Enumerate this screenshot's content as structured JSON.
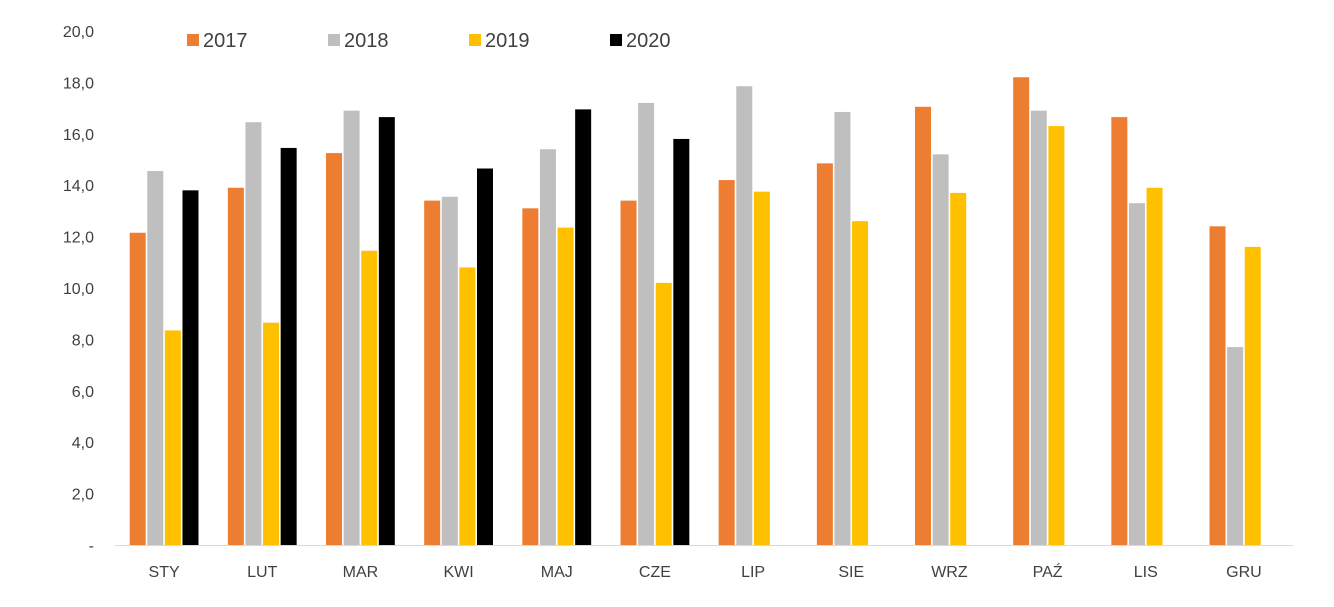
{
  "chart_data": {
    "type": "bar",
    "title": "",
    "xlabel": "",
    "ylabel": "",
    "ylim": [
      0,
      20
    ],
    "yticks": [
      0,
      2,
      4,
      6,
      8,
      10,
      12,
      14,
      16,
      18,
      20
    ],
    "ytick_labels": [
      "-",
      "2,0",
      "4,0",
      "6,0",
      "8,0",
      "10,0",
      "12,0",
      "14,0",
      "16,0",
      "18,0",
      "20,0"
    ],
    "categories": [
      "STY",
      "LUT",
      "MAR",
      "KWI",
      "MAJ",
      "CZE",
      "LIP",
      "SIE",
      "WRZ",
      "PAŹ",
      "LIS",
      "GRU"
    ],
    "legend_position": "top-left",
    "grid": false,
    "series": [
      {
        "name": "2017",
        "color": "#ED7D31",
        "values": [
          12.15,
          13.9,
          15.25,
          13.4,
          13.1,
          13.4,
          14.2,
          14.85,
          17.05,
          18.2,
          16.65,
          12.4
        ]
      },
      {
        "name": "2018",
        "color": "#BFBFBF",
        "values": [
          14.55,
          16.45,
          16.9,
          13.55,
          15.4,
          17.2,
          17.85,
          16.85,
          15.2,
          16.9,
          13.3,
          7.7
        ]
      },
      {
        "name": "2019",
        "color": "#FFC000",
        "values": [
          8.35,
          8.65,
          11.45,
          10.8,
          12.35,
          10.2,
          13.75,
          12.6,
          13.7,
          16.3,
          13.9,
          11.6
        ]
      },
      {
        "name": "2020",
        "color": "#000000",
        "values": [
          13.8,
          15.45,
          16.65,
          14.65,
          16.95,
          15.8,
          null,
          null,
          null,
          null,
          null,
          null
        ]
      }
    ]
  }
}
